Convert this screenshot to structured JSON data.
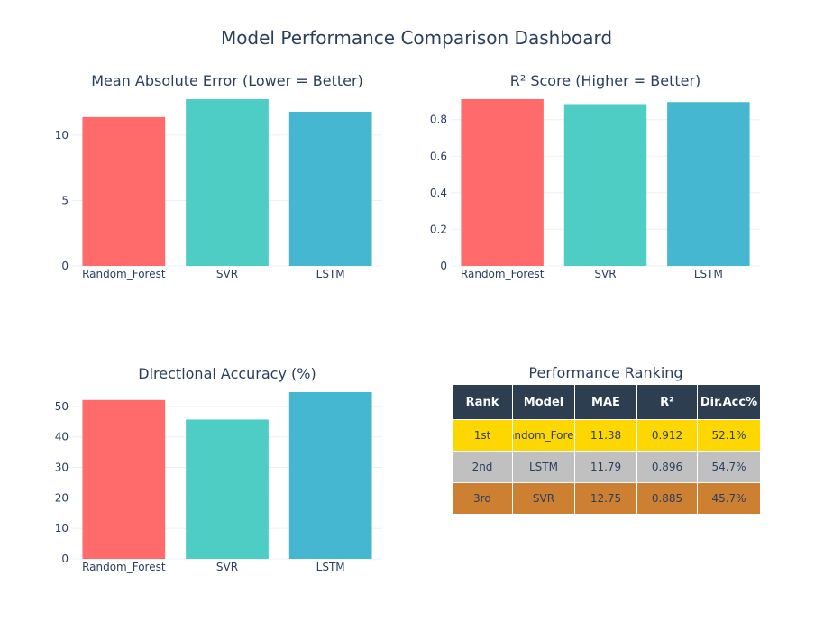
{
  "page_title": "Model Performance Comparison Dashboard",
  "colors": {
    "Random_Forest": "#ff6b6b",
    "SVR": "#4ecdc4",
    "LSTM": "#45b7d1"
  },
  "chart_data": [
    {
      "type": "bar",
      "title": "Mean Absolute Error (Lower = Better)",
      "categories": [
        "Random_Forest",
        "SVR",
        "LSTM"
      ],
      "values": [
        11.38,
        12.75,
        11.79
      ],
      "ylim": [
        0,
        12.75
      ],
      "yticks": [
        0,
        5,
        10
      ],
      "grid": true
    },
    {
      "type": "bar",
      "title": "R² Score (Higher = Better)",
      "categories": [
        "Random_Forest",
        "SVR",
        "LSTM"
      ],
      "values": [
        0.912,
        0.885,
        0.896
      ],
      "ylim": [
        0,
        0.912
      ],
      "yticks": [
        0,
        0.2,
        0.4,
        0.6,
        0.8
      ],
      "grid": true
    },
    {
      "type": "bar",
      "title": "Directional Accuracy (%)",
      "categories": [
        "Random_Forest",
        "SVR",
        "LSTM"
      ],
      "values": [
        52.1,
        45.7,
        54.7
      ],
      "ylim": [
        0,
        54.7
      ],
      "yticks": [
        0,
        10,
        20,
        30,
        40,
        50
      ],
      "grid": true
    },
    {
      "type": "table",
      "title": "Performance Ranking",
      "columns": [
        "Rank",
        "Model",
        "MAE",
        "R²",
        "Dir.Acc%"
      ],
      "rows": [
        [
          "1st",
          "Random_Forest",
          "11.38",
          "0.912",
          "52.1%"
        ],
        [
          "2nd",
          "LSTM",
          "11.79",
          "0.896",
          "54.7%"
        ],
        [
          "3rd",
          "SVR",
          "12.75",
          "0.885",
          "45.7%"
        ]
      ]
    }
  ]
}
